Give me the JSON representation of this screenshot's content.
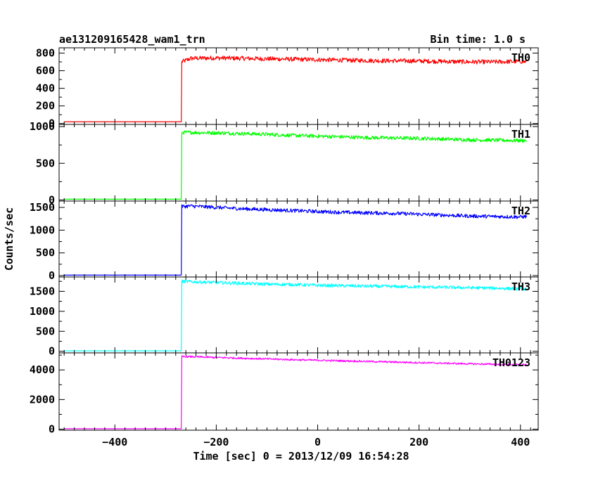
{
  "chart_data": {
    "type": "line",
    "title": "ae131209165428_wam1_trn",
    "bin_time_label": "Bin time: 1.0 s",
    "xlabel": "Time [sec] 0 = 2013/12/09 16:54:28",
    "ylabel": "Counts/sec",
    "xlim": [
      -510,
      435
    ],
    "xticks": [
      -400,
      -200,
      0,
      200,
      400
    ],
    "xtick_labels": [
      "−400",
      "−200",
      "0",
      "200",
      "400"
    ],
    "onset_time": -268,
    "series": [
      {
        "name": "TH0",
        "color": "#ff0000",
        "ylim": [
          -10,
          860
        ],
        "yticks": [
          0,
          200,
          400,
          600,
          800
        ],
        "x": [
          -500,
          -269,
          -268,
          -250,
          -200,
          -150,
          -100,
          -50,
          0,
          50,
          100,
          150,
          200,
          250,
          300,
          350,
          400,
          412
        ],
        "values": [
          20,
          20,
          700,
          740,
          745,
          740,
          735,
          730,
          725,
          720,
          715,
          712,
          710,
          705,
          700,
          700,
          705,
          700
        ],
        "noise": 25
      },
      {
        "name": "TH1",
        "color": "#00ff00",
        "ylim": [
          -15,
          1030
        ],
        "yticks": [
          0,
          500,
          1000
        ],
        "x": [
          -500,
          -269,
          -268,
          -250,
          -200,
          -150,
          -100,
          -50,
          0,
          50,
          100,
          150,
          200,
          250,
          300,
          350,
          400,
          412
        ],
        "values": [
          10,
          10,
          920,
          920,
          915,
          905,
          895,
          880,
          870,
          860,
          850,
          845,
          840,
          830,
          820,
          815,
          810,
          810
        ],
        "noise": 25
      },
      {
        "name": "TH2",
        "color": "#0000ff",
        "ylim": [
          -30,
          1640
        ],
        "yticks": [
          0,
          500,
          1000,
          1500
        ],
        "x": [
          -500,
          -269,
          -268,
          -250,
          -200,
          -150,
          -100,
          -50,
          0,
          50,
          100,
          150,
          200,
          250,
          300,
          350,
          400,
          412
        ],
        "values": [
          10,
          10,
          1520,
          1530,
          1500,
          1470,
          1450,
          1430,
          1410,
          1390,
          1380,
          1370,
          1350,
          1330,
          1310,
          1300,
          1290,
          1300
        ],
        "noise": 40
      },
      {
        "name": "TH3",
        "color": "#00ffff",
        "ylim": [
          -40,
          1860
        ],
        "yticks": [
          0,
          500,
          1000,
          1500
        ],
        "x": [
          -500,
          -269,
          -268,
          -250,
          -200,
          -150,
          -100,
          -50,
          0,
          50,
          100,
          150,
          200,
          250,
          300,
          350,
          400,
          412
        ],
        "values": [
          10,
          10,
          1750,
          1740,
          1720,
          1700,
          1680,
          1670,
          1650,
          1640,
          1630,
          1620,
          1610,
          1600,
          1590,
          1580,
          1560,
          1550
        ],
        "noise": 40
      },
      {
        "name": "TH0123",
        "color": "#ff00ff",
        "ylim": [
          -70,
          5150
        ],
        "yticks": [
          0,
          2000,
          4000
        ],
        "x": [
          -500,
          -269,
          -268,
          -250,
          -200,
          -150,
          -100,
          -50,
          0,
          50,
          100,
          150,
          200,
          250,
          300,
          350,
          400,
          412
        ],
        "values": [
          30,
          30,
          4900,
          4890,
          4840,
          4790,
          4740,
          4690,
          4650,
          4610,
          4570,
          4530,
          4490,
          4450,
          4410,
          4380,
          4350,
          4360
        ],
        "noise": 60
      }
    ]
  }
}
